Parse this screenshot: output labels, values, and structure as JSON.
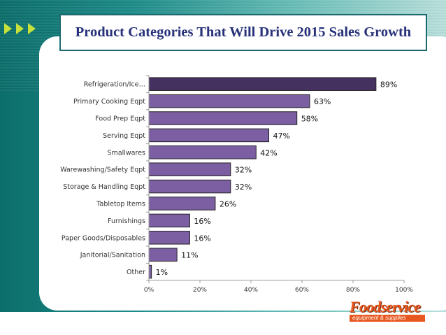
{
  "slide": {
    "title": "Product Categories That Will Drive 2015 Sales Growth",
    "logo_name": "Foodservice",
    "logo_tagline": "equipment & supplies",
    "colors": {
      "bar_fill": "#7c5fa3",
      "bar_highlight": "#45315f",
      "title_text": "#27327a",
      "title_border": "#1e6a70",
      "logo_orange": "#e8571f",
      "arrow": "#c6e23a"
    }
  },
  "chart_data": {
    "type": "bar",
    "orientation": "horizontal",
    "categories": [
      "Refrigeration/Ice…",
      "Primary Cooking Eqpt",
      "Food Prep Eqpt",
      "Serving Eqpt",
      "Smallwares",
      "Warewashing/Safety Eqpt",
      "Storage & Handling Eqpt",
      "Tabletop Items",
      "Furnishings",
      "Paper Goods/Disposables",
      "Janitorial/Sanitation",
      "Other"
    ],
    "values": [
      89,
      63,
      58,
      47,
      42,
      32,
      32,
      26,
      16,
      16,
      11,
      1
    ],
    "value_labels": [
      "89%",
      "63%",
      "58%",
      "47%",
      "42%",
      "32%",
      "32%",
      "26%",
      "16%",
      "16%",
      "11%",
      "1%"
    ],
    "xticks": [
      "0%",
      "20%",
      "40%",
      "60%",
      "80%",
      "100%"
    ],
    "xlim": [
      0,
      100
    ],
    "grid": false,
    "legend": "none"
  }
}
